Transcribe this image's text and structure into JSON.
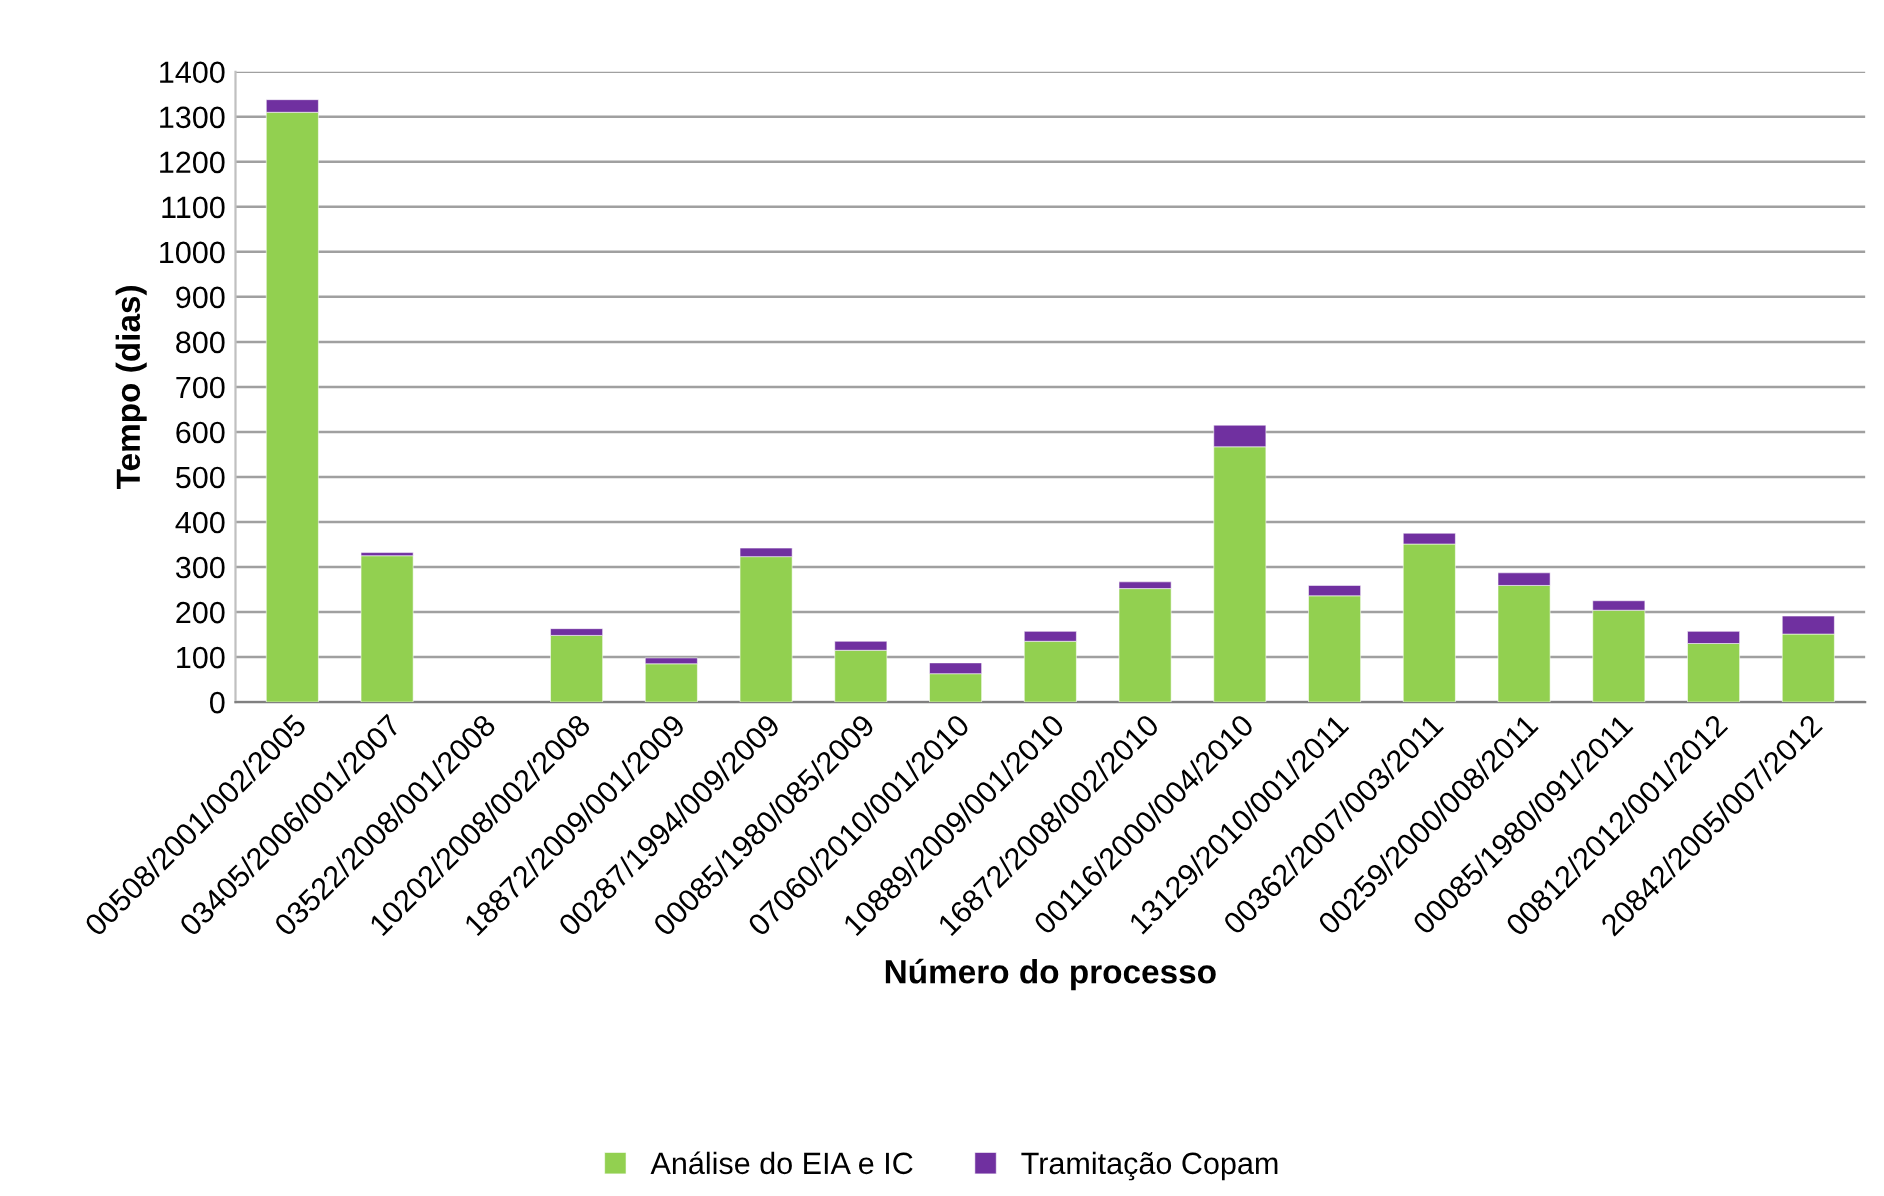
{
  "chart_data": {
    "type": "bar",
    "stacked": true,
    "xlabel": "Número do processo",
    "ylabel": "Tempo (dias)",
    "categories": [
      "00508/2001/002/2005",
      "03405/2006/001/2007",
      "03522/2008/001/2008",
      "10202/2008/002/2008",
      "18872/2009/001/2009",
      "00287/1994/009/2009",
      "00085/1980/085/2009",
      "07060/2010/001/2010",
      "10889/2009/001/2010",
      "16872/2008/002/2010",
      "00116/2000/004/2010",
      "13129/2010/001/2011",
      "00362/2007/003/2011",
      "00259/2000/008/2011",
      "00085/1980/091/2011",
      "00812/2012/001/2012",
      "20842/2005/007/2012"
    ],
    "series": [
      {
        "name": "Análise do EIA e IC",
        "color": "#92d050",
        "values": [
          1310,
          325,
          null,
          148,
          85,
          323,
          115,
          63,
          135,
          252,
          567,
          236,
          351,
          259,
          204,
          130,
          151
        ]
      },
      {
        "name": "Tramitação Copam",
        "color": "#7030a0",
        "values": [
          28,
          7,
          null,
          15,
          13,
          19,
          20,
          24,
          22,
          15,
          48,
          23,
          24,
          28,
          21,
          27,
          40
        ]
      }
    ],
    "ylim": [
      0,
      1400
    ],
    "yticks": [
      0,
      100,
      200,
      300,
      400,
      500,
      600,
      700,
      800,
      900,
      1000,
      1100,
      1200,
      1300,
      1400
    ],
    "grid": "y",
    "legend": "bottom"
  }
}
